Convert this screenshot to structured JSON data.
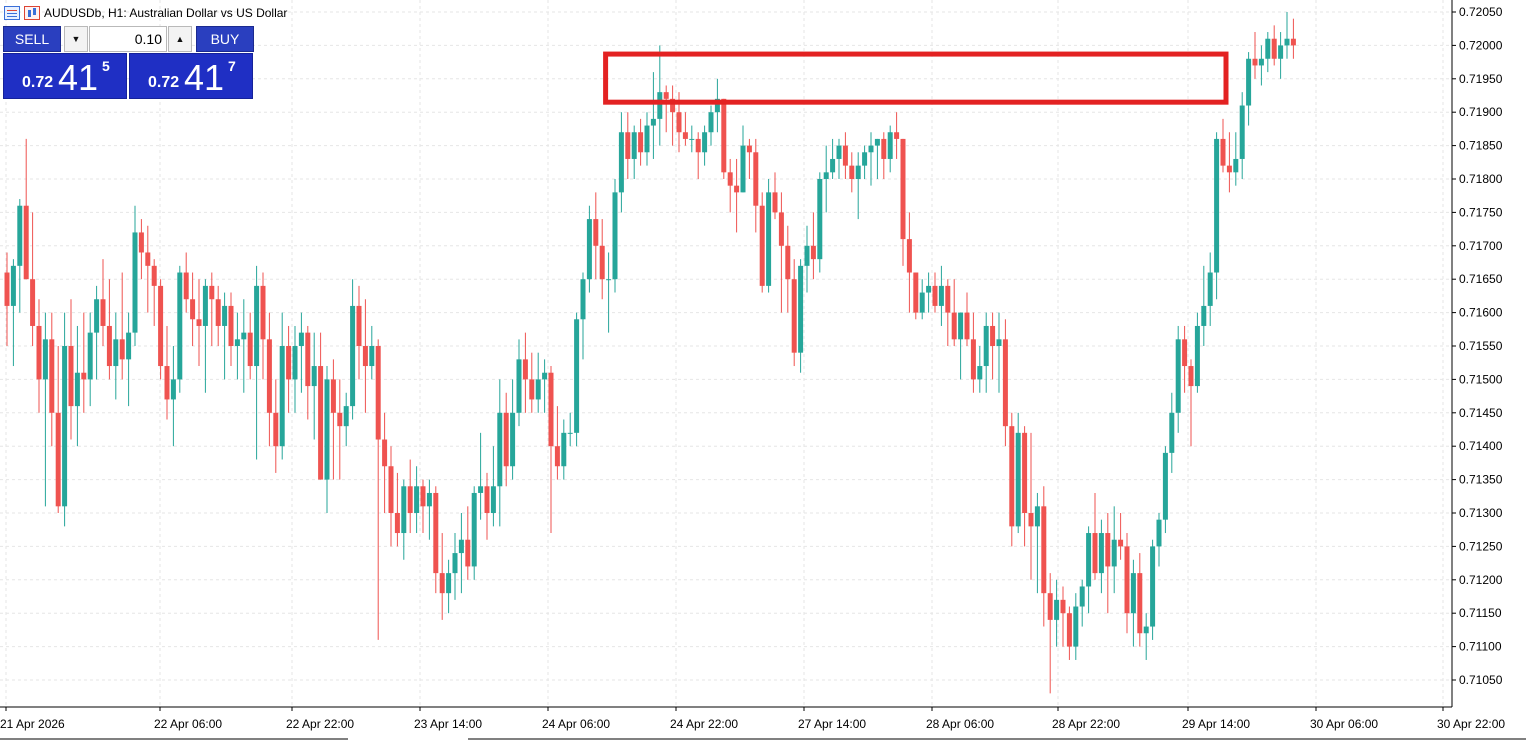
{
  "header": {
    "title": "AUDUSDb, H1:  Australian Dollar vs US Dollar",
    "icons": [
      "table-icon",
      "bar-chart-icon"
    ]
  },
  "trade_panel": {
    "sell_label": "SELL",
    "buy_label": "BUY",
    "volume": "0.10",
    "sell_price": {
      "prefix": "0.72",
      "big": "41",
      "sup": "5"
    },
    "buy_price": {
      "prefix": "0.72",
      "big": "41",
      "sup": "7"
    }
  },
  "colors": {
    "bull": "#26a69a",
    "bear": "#ef5350",
    "highlight": "#e32222",
    "grid": "#e6e6e6",
    "panel": "#1f2fc4"
  },
  "chart_data": {
    "type": "candlestick",
    "symbol": "AUDUSDb",
    "timeframe": "H1",
    "y_ticks": [
      "0.72050",
      "0.72000",
      "0.71950",
      "0.71900",
      "0.71850",
      "0.71800",
      "0.71750",
      "0.71700",
      "0.71650",
      "0.71600",
      "0.71550",
      "0.71500",
      "0.71450",
      "0.71400",
      "0.71350",
      "0.71300",
      "0.71250",
      "0.71200",
      "0.71150",
      "0.71100",
      "0.71050"
    ],
    "ylim": [
      0.71025,
      0.72065
    ],
    "x_ticks": [
      "21 Apr 2026",
      "22 Apr 06:00",
      "22 Apr 22:00",
      "23 Apr 14:00",
      "24 Apr 06:00",
      "24 Apr 22:00",
      "27 Apr 14:00",
      "28 Apr 06:00",
      "28 Apr 22:00",
      "29 Apr 14:00",
      "30 Apr 06:00",
      "30 Apr 22:00"
    ],
    "highlight_zone": {
      "price_from": 0.71915,
      "price_to": 0.7199,
      "candle_from": 94,
      "candle_to": 198
    },
    "candles": [
      [
        0.7166,
        0.7169,
        0.7155,
        0.7161
      ],
      [
        0.7161,
        0.7168,
        0.7152,
        0.7167
      ],
      [
        0.7167,
        0.7177,
        0.716,
        0.7176
      ],
      [
        0.7176,
        0.7186,
        0.7165,
        0.7165
      ],
      [
        0.7165,
        0.7175,
        0.7155,
        0.7158
      ],
      [
        0.7158,
        0.7162,
        0.7145,
        0.715
      ],
      [
        0.715,
        0.716,
        0.7131,
        0.7156
      ],
      [
        0.7156,
        0.716,
        0.714,
        0.7145
      ],
      [
        0.7145,
        0.7155,
        0.713,
        0.7131
      ],
      [
        0.7131,
        0.716,
        0.7128,
        0.7155
      ],
      [
        0.7155,
        0.7162,
        0.7141,
        0.7146
      ],
      [
        0.7146,
        0.7158,
        0.714,
        0.7151
      ],
      [
        0.7151,
        0.716,
        0.7145,
        0.715
      ],
      [
        0.715,
        0.716,
        0.7146,
        0.7157
      ],
      [
        0.7157,
        0.7164,
        0.715,
        0.7162
      ],
      [
        0.7162,
        0.7168,
        0.7155,
        0.7158
      ],
      [
        0.7158,
        0.7165,
        0.715,
        0.7152
      ],
      [
        0.7152,
        0.716,
        0.7147,
        0.7156
      ],
      [
        0.7156,
        0.7166,
        0.715,
        0.7153
      ],
      [
        0.7153,
        0.716,
        0.7146,
        0.7157
      ],
      [
        0.7157,
        0.7176,
        0.7155,
        0.7172
      ],
      [
        0.7172,
        0.7174,
        0.7165,
        0.7169
      ],
      [
        0.7169,
        0.7173,
        0.716,
        0.7167
      ],
      [
        0.7167,
        0.7168,
        0.7158,
        0.7164
      ],
      [
        0.7164,
        0.7165,
        0.715,
        0.7152
      ],
      [
        0.7152,
        0.7158,
        0.7144,
        0.7147
      ],
      [
        0.7147,
        0.7155,
        0.714,
        0.715
      ],
      [
        0.715,
        0.7167,
        0.7148,
        0.7166
      ],
      [
        0.7166,
        0.7169,
        0.716,
        0.7162
      ],
      [
        0.7162,
        0.7166,
        0.7155,
        0.7159
      ],
      [
        0.7159,
        0.7165,
        0.7152,
        0.7158
      ],
      [
        0.7158,
        0.7165,
        0.7148,
        0.7164
      ],
      [
        0.7164,
        0.7166,
        0.7155,
        0.7162
      ],
      [
        0.7162,
        0.7164,
        0.7155,
        0.7158
      ],
      [
        0.7158,
        0.7163,
        0.715,
        0.7161
      ],
      [
        0.7161,
        0.7163,
        0.7152,
        0.7155
      ],
      [
        0.7155,
        0.716,
        0.715,
        0.7156
      ],
      [
        0.7156,
        0.7162,
        0.7148,
        0.7157
      ],
      [
        0.7157,
        0.716,
        0.715,
        0.7152
      ],
      [
        0.7152,
        0.7167,
        0.7138,
        0.7164
      ],
      [
        0.7164,
        0.7166,
        0.715,
        0.7156
      ],
      [
        0.7156,
        0.716,
        0.714,
        0.7145
      ],
      [
        0.7145,
        0.715,
        0.7136,
        0.714
      ],
      [
        0.714,
        0.716,
        0.7138,
        0.7155
      ],
      [
        0.7155,
        0.7158,
        0.7145,
        0.715
      ],
      [
        0.715,
        0.7158,
        0.7145,
        0.7155
      ],
      [
        0.7155,
        0.716,
        0.7148,
        0.7157
      ],
      [
        0.7157,
        0.7158,
        0.7144,
        0.7149
      ],
      [
        0.7149,
        0.7157,
        0.7141,
        0.7152
      ],
      [
        0.7152,
        0.7157,
        0.7135,
        0.7135
      ],
      [
        0.7135,
        0.7152,
        0.713,
        0.715
      ],
      [
        0.715,
        0.7153,
        0.7135,
        0.7145
      ],
      [
        0.7145,
        0.715,
        0.7135,
        0.7143
      ],
      [
        0.7143,
        0.7148,
        0.714,
        0.7146
      ],
      [
        0.7146,
        0.7165,
        0.7144,
        0.7161
      ],
      [
        0.7161,
        0.7164,
        0.715,
        0.7155
      ],
      [
        0.7155,
        0.7162,
        0.7145,
        0.7152
      ],
      [
        0.7152,
        0.7158,
        0.715,
        0.7155
      ],
      [
        0.7155,
        0.7156,
        0.7111,
        0.7141
      ],
      [
        0.7141,
        0.7145,
        0.713,
        0.7137
      ],
      [
        0.7137,
        0.714,
        0.7125,
        0.713
      ],
      [
        0.713,
        0.7136,
        0.7125,
        0.7127
      ],
      [
        0.7127,
        0.7135,
        0.7123,
        0.7134
      ],
      [
        0.7134,
        0.7138,
        0.7127,
        0.713
      ],
      [
        0.713,
        0.7137,
        0.7127,
        0.7134
      ],
      [
        0.7134,
        0.7135,
        0.7127,
        0.7131
      ],
      [
        0.7131,
        0.7135,
        0.7126,
        0.7133
      ],
      [
        0.7133,
        0.7134,
        0.7118,
        0.7121
      ],
      [
        0.7121,
        0.7127,
        0.7114,
        0.7118
      ],
      [
        0.7118,
        0.7123,
        0.7115,
        0.7121
      ],
      [
        0.7121,
        0.7127,
        0.7117,
        0.7124
      ],
      [
        0.7124,
        0.713,
        0.7118,
        0.7126
      ],
      [
        0.7126,
        0.7131,
        0.712,
        0.7122
      ],
      [
        0.7122,
        0.7134,
        0.712,
        0.7133
      ],
      [
        0.7133,
        0.7142,
        0.7129,
        0.7134
      ],
      [
        0.7134,
        0.7136,
        0.7126,
        0.713
      ],
      [
        0.713,
        0.714,
        0.7128,
        0.7134
      ],
      [
        0.7134,
        0.715,
        0.7128,
        0.7145
      ],
      [
        0.7145,
        0.7148,
        0.7134,
        0.7137
      ],
      [
        0.7137,
        0.715,
        0.7135,
        0.7145
      ],
      [
        0.7145,
        0.7156,
        0.7143,
        0.7153
      ],
      [
        0.7153,
        0.7157,
        0.7145,
        0.715
      ],
      [
        0.715,
        0.7154,
        0.7145,
        0.7147
      ],
      [
        0.7147,
        0.7154,
        0.7145,
        0.715
      ],
      [
        0.715,
        0.7153,
        0.7145,
        0.7151
      ],
      [
        0.7151,
        0.7152,
        0.7127,
        0.714
      ],
      [
        0.714,
        0.7146,
        0.7135,
        0.7137
      ],
      [
        0.7137,
        0.7144,
        0.7135,
        0.7142
      ],
      [
        0.7142,
        0.7145,
        0.714,
        0.7142
      ],
      [
        0.7142,
        0.716,
        0.714,
        0.7159
      ],
      [
        0.7159,
        0.7166,
        0.7153,
        0.7165
      ],
      [
        0.7165,
        0.7176,
        0.7163,
        0.7174
      ],
      [
        0.7174,
        0.7178,
        0.7165,
        0.717
      ],
      [
        0.717,
        0.7174,
        0.7162,
        0.7165
      ],
      [
        0.7165,
        0.7169,
        0.7157,
        0.7165
      ],
      [
        0.7165,
        0.718,
        0.7163,
        0.7178
      ],
      [
        0.7178,
        0.719,
        0.7175,
        0.7187
      ],
      [
        0.7187,
        0.719,
        0.718,
        0.7183
      ],
      [
        0.7183,
        0.7188,
        0.718,
        0.7187
      ],
      [
        0.7187,
        0.7189,
        0.7182,
        0.7184
      ],
      [
        0.7184,
        0.719,
        0.7182,
        0.7188
      ],
      [
        0.7188,
        0.7196,
        0.7183,
        0.7189
      ],
      [
        0.7189,
        0.72,
        0.7185,
        0.7193
      ],
      [
        0.7193,
        0.7194,
        0.7187,
        0.7192
      ],
      [
        0.7192,
        0.7194,
        0.7185,
        0.719
      ],
      [
        0.719,
        0.7193,
        0.7184,
        0.7187
      ],
      [
        0.7187,
        0.719,
        0.7185,
        0.7186
      ],
      [
        0.7186,
        0.7188,
        0.7184,
        0.7186
      ],
      [
        0.7186,
        0.7187,
        0.718,
        0.7184
      ],
      [
        0.7184,
        0.7188,
        0.7182,
        0.7187
      ],
      [
        0.7187,
        0.7191,
        0.7185,
        0.719
      ],
      [
        0.719,
        0.7195,
        0.7187,
        0.7192
      ],
      [
        0.7192,
        0.7192,
        0.718,
        0.7181
      ],
      [
        0.7181,
        0.7183,
        0.7175,
        0.7179
      ],
      [
        0.7179,
        0.7183,
        0.7172,
        0.7178
      ],
      [
        0.7178,
        0.7188,
        0.7178,
        0.7185
      ],
      [
        0.7185,
        0.7186,
        0.718,
        0.7184
      ],
      [
        0.7184,
        0.7186,
        0.7172,
        0.7176
      ],
      [
        0.7176,
        0.7178,
        0.7163,
        0.7164
      ],
      [
        0.7164,
        0.718,
        0.7163,
        0.7178
      ],
      [
        0.7178,
        0.7181,
        0.7174,
        0.7175
      ],
      [
        0.7175,
        0.7178,
        0.716,
        0.717
      ],
      [
        0.717,
        0.7173,
        0.716,
        0.7165
      ],
      [
        0.7165,
        0.7168,
        0.7152,
        0.7154
      ],
      [
        0.7154,
        0.7168,
        0.7151,
        0.7167
      ],
      [
        0.7167,
        0.7173,
        0.7163,
        0.717
      ],
      [
        0.717,
        0.7175,
        0.7165,
        0.7168
      ],
      [
        0.7168,
        0.7181,
        0.7166,
        0.718
      ],
      [
        0.718,
        0.7185,
        0.7175,
        0.7181
      ],
      [
        0.7181,
        0.7186,
        0.718,
        0.7183
      ],
      [
        0.7183,
        0.7186,
        0.718,
        0.7185
      ],
      [
        0.7185,
        0.7187,
        0.718,
        0.7182
      ],
      [
        0.7182,
        0.7184,
        0.7178,
        0.718
      ],
      [
        0.718,
        0.7184,
        0.7174,
        0.7182
      ],
      [
        0.7182,
        0.7185,
        0.718,
        0.7184
      ],
      [
        0.7184,
        0.7187,
        0.7179,
        0.7185
      ],
      [
        0.7185,
        0.7186,
        0.718,
        0.7186
      ],
      [
        0.7186,
        0.7187,
        0.718,
        0.7183
      ],
      [
        0.7183,
        0.7188,
        0.7181,
        0.7187
      ],
      [
        0.7187,
        0.719,
        0.7183,
        0.7186
      ],
      [
        0.7186,
        0.7186,
        0.7167,
        0.7171
      ],
      [
        0.7171,
        0.7175,
        0.716,
        0.7166
      ],
      [
        0.7166,
        0.7166,
        0.7159,
        0.716
      ],
      [
        0.716,
        0.7165,
        0.7159,
        0.7163
      ],
      [
        0.7163,
        0.7166,
        0.716,
        0.7164
      ],
      [
        0.7164,
        0.7166,
        0.716,
        0.7161
      ],
      [
        0.7161,
        0.7167,
        0.7158,
        0.7164
      ],
      [
        0.7164,
        0.7165,
        0.7155,
        0.716
      ],
      [
        0.716,
        0.7165,
        0.7155,
        0.7156
      ],
      [
        0.7156,
        0.716,
        0.715,
        0.716
      ],
      [
        0.716,
        0.7163,
        0.7155,
        0.7156
      ],
      [
        0.7156,
        0.716,
        0.7148,
        0.715
      ],
      [
        0.715,
        0.7155,
        0.7148,
        0.7152
      ],
      [
        0.7152,
        0.716,
        0.7148,
        0.7158
      ],
      [
        0.7158,
        0.716,
        0.715,
        0.7155
      ],
      [
        0.7155,
        0.716,
        0.7148,
        0.7156
      ],
      [
        0.7156,
        0.7159,
        0.714,
        0.7143
      ],
      [
        0.7143,
        0.7145,
        0.7125,
        0.7128
      ],
      [
        0.7128,
        0.7145,
        0.7127,
        0.7142
      ],
      [
        0.7142,
        0.7143,
        0.7125,
        0.713
      ],
      [
        0.713,
        0.7142,
        0.712,
        0.7128
      ],
      [
        0.7128,
        0.7133,
        0.7118,
        0.7131
      ],
      [
        0.7131,
        0.7134,
        0.7113,
        0.7118
      ],
      [
        0.7118,
        0.7121,
        0.7103,
        0.7114
      ],
      [
        0.7114,
        0.712,
        0.711,
        0.7117
      ],
      [
        0.7117,
        0.7119,
        0.711,
        0.7115
      ],
      [
        0.7115,
        0.7116,
        0.7108,
        0.711
      ],
      [
        0.711,
        0.7118,
        0.7108,
        0.7116
      ],
      [
        0.7116,
        0.712,
        0.7113,
        0.7119
      ],
      [
        0.7119,
        0.7128,
        0.7115,
        0.7127
      ],
      [
        0.7127,
        0.7133,
        0.712,
        0.7121
      ],
      [
        0.7121,
        0.7129,
        0.7118,
        0.7127
      ],
      [
        0.7127,
        0.713,
        0.7115,
        0.7122
      ],
      [
        0.7122,
        0.7131,
        0.7118,
        0.7126
      ],
      [
        0.7126,
        0.713,
        0.7123,
        0.7125
      ],
      [
        0.7125,
        0.7127,
        0.7112,
        0.7115
      ],
      [
        0.7115,
        0.7123,
        0.711,
        0.7121
      ],
      [
        0.7121,
        0.7124,
        0.711,
        0.7112
      ],
      [
        0.7112,
        0.7115,
        0.7108,
        0.7113
      ],
      [
        0.7113,
        0.7126,
        0.7111,
        0.7125
      ],
      [
        0.7125,
        0.713,
        0.7122,
        0.7129
      ],
      [
        0.7129,
        0.714,
        0.7127,
        0.7139
      ],
      [
        0.7139,
        0.7148,
        0.7136,
        0.7145
      ],
      [
        0.7145,
        0.7158,
        0.7142,
        0.7156
      ],
      [
        0.7156,
        0.7158,
        0.7148,
        0.7152
      ],
      [
        0.7152,
        0.7153,
        0.714,
        0.7149
      ],
      [
        0.7149,
        0.716,
        0.7148,
        0.7158
      ],
      [
        0.7158,
        0.7167,
        0.7155,
        0.7161
      ],
      [
        0.7161,
        0.7169,
        0.7158,
        0.7166
      ],
      [
        0.7166,
        0.7187,
        0.7162,
        0.7186
      ],
      [
        0.7186,
        0.7189,
        0.7181,
        0.7182
      ],
      [
        0.7182,
        0.7187,
        0.7178,
        0.7181
      ],
      [
        0.7181,
        0.7187,
        0.7179,
        0.7183
      ],
      [
        0.7183,
        0.7193,
        0.718,
        0.7191
      ],
      [
        0.7191,
        0.7199,
        0.7188,
        0.7198
      ],
      [
        0.7198,
        0.7202,
        0.7195,
        0.7197
      ],
      [
        0.7197,
        0.72,
        0.7194,
        0.7198
      ],
      [
        0.7198,
        0.7202,
        0.7196,
        0.7201
      ],
      [
        0.7201,
        0.7203,
        0.7197,
        0.7198
      ],
      [
        0.7198,
        0.7202,
        0.7195,
        0.72
      ],
      [
        0.72,
        0.7205,
        0.7198,
        0.7201
      ],
      [
        0.7201,
        0.7204,
        0.7198,
        0.72
      ]
    ]
  }
}
